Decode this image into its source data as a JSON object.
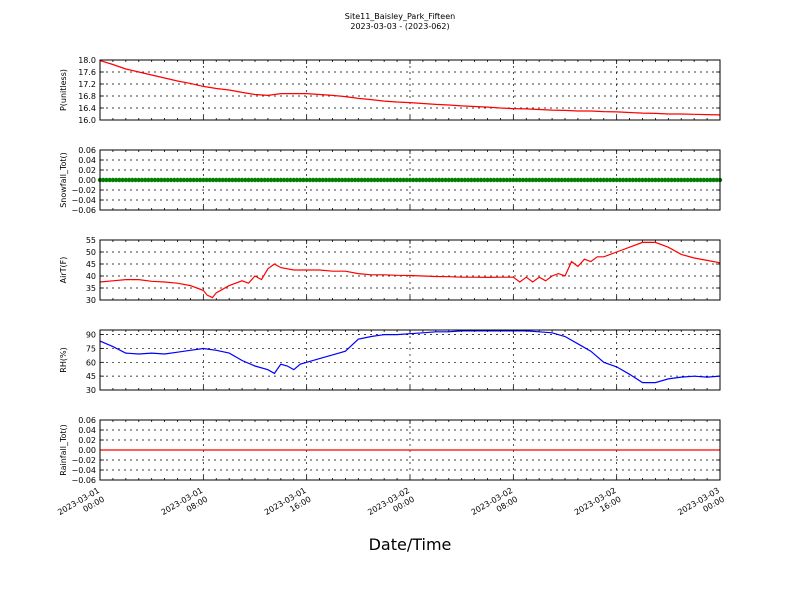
{
  "figure": {
    "title_line1": "Site11_Baisley_Park_Fifteen",
    "title_line2": "2023-03-03 - (2023-062)",
    "xlabel": "Date/Time"
  },
  "chart_data": [
    {
      "type": "line",
      "ylabel": "P(unitless)",
      "color": "#ff0000",
      "ylim": [
        16.0,
        18.0
      ],
      "yticks": [
        "18.0",
        "17.6",
        "17.2",
        "16.8",
        "16.4",
        "16.0"
      ],
      "ytick_values": [
        18.0,
        17.6,
        17.2,
        16.8,
        16.4,
        16.0
      ],
      "grid": true,
      "x_hours": [
        0,
        1,
        2,
        3,
        4,
        5,
        6,
        7,
        8,
        9,
        10,
        11,
        12,
        13,
        14,
        15,
        16,
        17,
        18,
        19,
        20,
        21,
        22,
        23,
        24,
        25,
        26,
        27,
        28,
        29,
        30,
        31,
        32,
        33,
        34,
        35,
        36,
        37,
        38,
        39,
        40,
        41,
        42,
        43,
        44,
        45,
        46,
        47,
        48
      ],
      "y": [
        17.98,
        17.85,
        17.7,
        17.6,
        17.5,
        17.4,
        17.3,
        17.22,
        17.12,
        17.05,
        17.0,
        16.92,
        16.85,
        16.82,
        16.88,
        16.88,
        16.88,
        16.85,
        16.82,
        16.78,
        16.72,
        16.68,
        16.63,
        16.6,
        16.58,
        16.55,
        16.52,
        16.5,
        16.47,
        16.45,
        16.43,
        16.4,
        16.38,
        16.37,
        16.35,
        16.33,
        16.32,
        16.3,
        16.3,
        16.28,
        16.27,
        16.25,
        16.23,
        16.22,
        16.2,
        16.2,
        16.19,
        16.18,
        16.17
      ]
    },
    {
      "type": "line",
      "ylabel": "Snowfall_Tot()",
      "color": "#008000",
      "ylim": [
        -0.06,
        0.06
      ],
      "yticks": [
        "0.06",
        "0.04",
        "0.02",
        "0.00",
        "−0.02",
        "−0.04",
        "−0.06"
      ],
      "ytick_values": [
        0.06,
        0.04,
        0.02,
        0.0,
        -0.02,
        -0.04,
        -0.06
      ],
      "grid": true,
      "markers": true,
      "x_hours": [
        0,
        48
      ],
      "y": [
        0.0,
        0.0
      ]
    },
    {
      "type": "line",
      "ylabel": "AirT(F)",
      "color": "#ff0000",
      "ylim": [
        30,
        55
      ],
      "yticks": [
        "55",
        "50",
        "45",
        "40",
        "35",
        "30"
      ],
      "ytick_values": [
        55,
        50,
        45,
        40,
        35,
        30
      ],
      "grid": true,
      "x_hours": [
        0,
        1,
        2,
        3,
        4,
        5,
        6,
        7,
        7.5,
        8,
        8.3,
        8.7,
        9,
        10,
        11,
        11.5,
        12,
        12.5,
        13,
        13.5,
        14,
        15,
        16,
        17,
        18,
        19,
        20,
        21,
        22,
        23,
        24,
        25,
        26,
        27,
        28,
        29,
        30,
        31,
        32,
        32.5,
        33,
        33.5,
        34,
        34.5,
        35,
        35.5,
        36,
        36.5,
        37,
        37.5,
        38,
        38.5,
        39,
        40,
        41,
        42,
        43,
        44,
        45,
        46,
        47,
        48
      ],
      "y": [
        37.5,
        38,
        38.5,
        38.5,
        37.8,
        37.5,
        37,
        36,
        35,
        34,
        32,
        31,
        33,
        36,
        38,
        37,
        40,
        38.5,
        43,
        45,
        43.5,
        42.5,
        42.5,
        42.5,
        42,
        42,
        41,
        40.5,
        40.5,
        40.3,
        40.2,
        40,
        39.8,
        39.7,
        39.5,
        39.5,
        39.4,
        39.5,
        39.5,
        37.5,
        39.5,
        37.5,
        39.5,
        38,
        40,
        41,
        40,
        46,
        44,
        47,
        46,
        48,
        48,
        50,
        52,
        54,
        54,
        52,
        49,
        47.5,
        46.5,
        45.5
      ]
    },
    {
      "type": "line",
      "ylabel": "RH(%)",
      "color": "#0000ff",
      "ylim": [
        30,
        95
      ],
      "yticks": [
        "90",
        "75",
        "60",
        "45",
        "30"
      ],
      "ytick_values": [
        90,
        75,
        60,
        45,
        30
      ],
      "grid": true,
      "x_hours": [
        0,
        1,
        2,
        3,
        4,
        5,
        6,
        7,
        8,
        9,
        10,
        11,
        12,
        13,
        13.5,
        14,
        14.5,
        15,
        15.5,
        16,
        17,
        18,
        19,
        20,
        21,
        22,
        23,
        24,
        25,
        26,
        27,
        28,
        29,
        30,
        31,
        32,
        33,
        34,
        35,
        36,
        37,
        38,
        39,
        40,
        41,
        42,
        43,
        44,
        45,
        46,
        47,
        48
      ],
      "y": [
        83,
        77,
        70,
        69,
        70,
        69,
        71,
        73,
        75,
        73,
        70,
        62,
        56,
        52,
        48,
        58,
        56,
        52,
        58,
        60,
        64,
        68,
        72,
        85,
        88,
        90,
        90,
        91,
        92,
        93,
        93,
        94,
        94,
        94,
        94,
        94,
        94,
        93,
        92,
        88,
        80,
        72,
        60,
        55,
        47,
        38,
        38,
        42,
        44,
        45,
        44,
        45
      ]
    },
    {
      "type": "line",
      "ylabel": "Rainfall_Tot()",
      "color": "#ff0000",
      "ylim": [
        -0.06,
        0.06
      ],
      "yticks": [
        "0.06",
        "0.04",
        "0.02",
        "0.00",
        "−0.02",
        "−0.04",
        "−0.06"
      ],
      "ytick_values": [
        0.06,
        0.04,
        0.02,
        0.0,
        -0.02,
        -0.04,
        -0.06
      ],
      "grid": true,
      "x_hours": [
        0,
        48
      ],
      "y": [
        0.0,
        0.0
      ]
    }
  ],
  "x_axis": {
    "range_hours": [
      0,
      48
    ],
    "ticks": [
      {
        "hour": 0,
        "line1": "2023-03-01",
        "line2": "00:00"
      },
      {
        "hour": 8,
        "line1": "2023-03-01",
        "line2": "08:00"
      },
      {
        "hour": 16,
        "line1": "2023-03-01",
        "line2": "16:00"
      },
      {
        "hour": 24,
        "line1": "2023-03-02",
        "line2": "00:00"
      },
      {
        "hour": 32,
        "line1": "2023-03-02",
        "line2": "08:00"
      },
      {
        "hour": 40,
        "line1": "2023-03-02",
        "line2": "16:00"
      },
      {
        "hour": 48,
        "line1": "2023-03-03",
        "line2": "00:00"
      }
    ]
  }
}
